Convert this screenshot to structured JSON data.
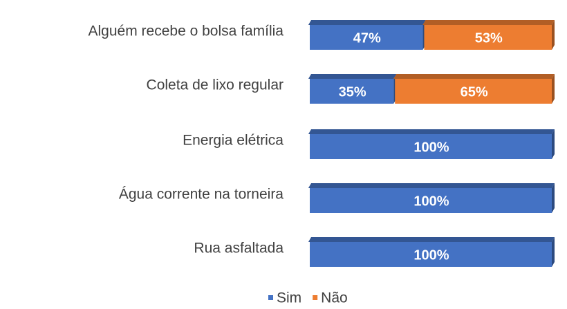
{
  "chart_data": {
    "type": "bar",
    "orientation": "horizontal",
    "stacked": true,
    "categories": [
      "Alguém recebe o bolsa família",
      "Coleta de lixo regular",
      "Energia elétrica",
      "Água corrente na torneira",
      "Rua asfaltada"
    ],
    "series": [
      {
        "name": "Sim",
        "color": "#4472c4",
        "values": [
          47,
          35,
          100,
          100,
          100
        ],
        "value_labels": [
          "47%",
          "35%",
          "100%",
          "100%",
          "100%"
        ]
      },
      {
        "name": "Não",
        "color": "#ed7d31",
        "values": [
          53,
          65,
          0,
          0,
          0
        ],
        "value_labels": [
          "53%",
          "65%",
          null,
          null,
          null
        ]
      }
    ],
    "xlim": [
      0,
      100
    ],
    "legend": "bottom"
  }
}
